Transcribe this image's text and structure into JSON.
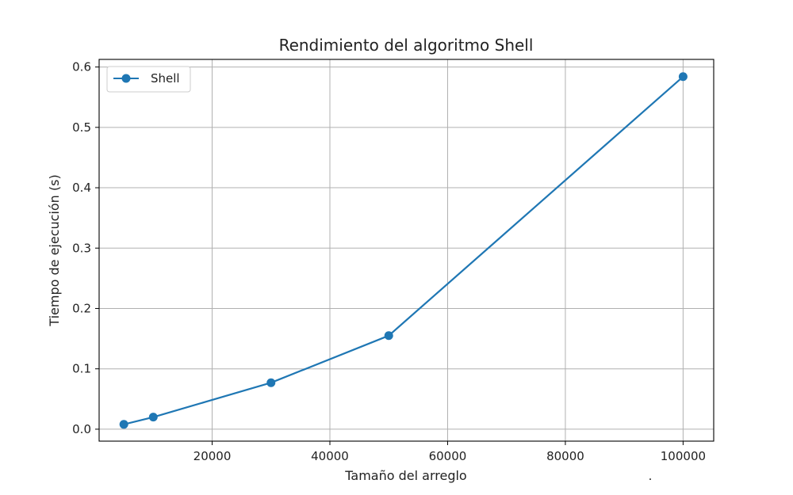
{
  "chart_data": {
    "type": "line",
    "title": "Rendimiento del algoritmo Shell",
    "xlabel": "Tamaño del arreglo",
    "ylabel": "Tiempo de ejecución (s)",
    "x": [
      5000,
      10000,
      30000,
      50000,
      100000
    ],
    "series": [
      {
        "name": "Shell",
        "values": [
          0.008,
          0.02,
          0.077,
          0.155,
          0.584
        ],
        "color": "#1f77b4",
        "marker": "circle"
      }
    ],
    "xticks": [
      20000,
      40000,
      60000,
      80000,
      100000
    ],
    "xtick_labels": [
      "20000",
      "40000",
      "60000",
      "80000",
      "100000"
    ],
    "yticks": [
      0.0,
      0.1,
      0.2,
      0.3,
      0.4,
      0.5,
      0.6
    ],
    "ytick_labels": [
      "0.0",
      "0.1",
      "0.2",
      "0.3",
      "0.4",
      "0.5",
      "0.6"
    ],
    "xlim": [
      800,
      105200
    ],
    "ylim": [
      -0.0198,
      0.6126
    ],
    "grid": true,
    "legend_position": "top-left"
  },
  "stray_mark": "."
}
